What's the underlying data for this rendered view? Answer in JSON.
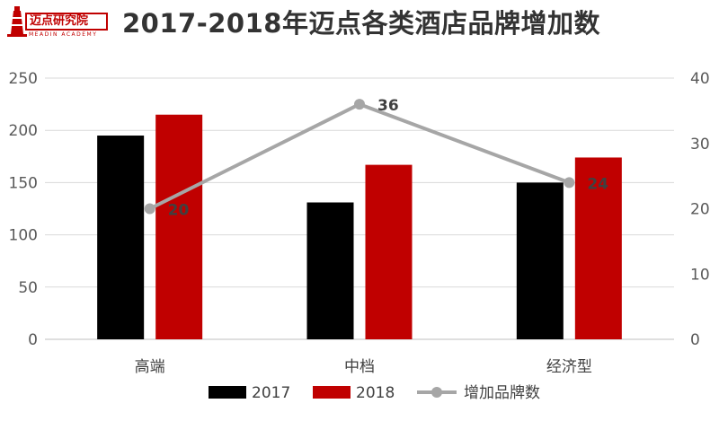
{
  "header": {
    "logo_text": "迈点研究院",
    "logo_sub": "MEADIN ACADEMY",
    "title": "2017-2018年迈点各类酒店品牌增加数"
  },
  "colors": {
    "series_2017": "#000000",
    "series_2018": "#c00000",
    "line": "#a6a6a6",
    "grid": "#d9d9d9",
    "axis": "#bfbfbf"
  },
  "chart_data": {
    "type": "bar",
    "title": "2017-2018年迈点各类酒店品牌增加数",
    "categories": [
      "高端",
      "中档",
      "经济型"
    ],
    "series": [
      {
        "name": "2017",
        "type": "bar",
        "axis": "left",
        "values": [
          195,
          131,
          150
        ]
      },
      {
        "name": "2018",
        "type": "bar",
        "axis": "left",
        "values": [
          215,
          167,
          174
        ]
      },
      {
        "name": "增加品牌数",
        "type": "line",
        "axis": "right",
        "values": [
          20,
          36,
          24
        ],
        "labels": [
          "20",
          "36",
          "24"
        ]
      }
    ],
    "ylim": [
      0,
      250
    ],
    "y_ticks": [
      "0",
      "50",
      "100",
      "150",
      "200",
      "250"
    ],
    "y2lim": [
      0,
      40
    ],
    "y2_ticks": [
      "0",
      "10",
      "20",
      "30",
      "40"
    ],
    "grid": true,
    "legend": "bottom"
  }
}
